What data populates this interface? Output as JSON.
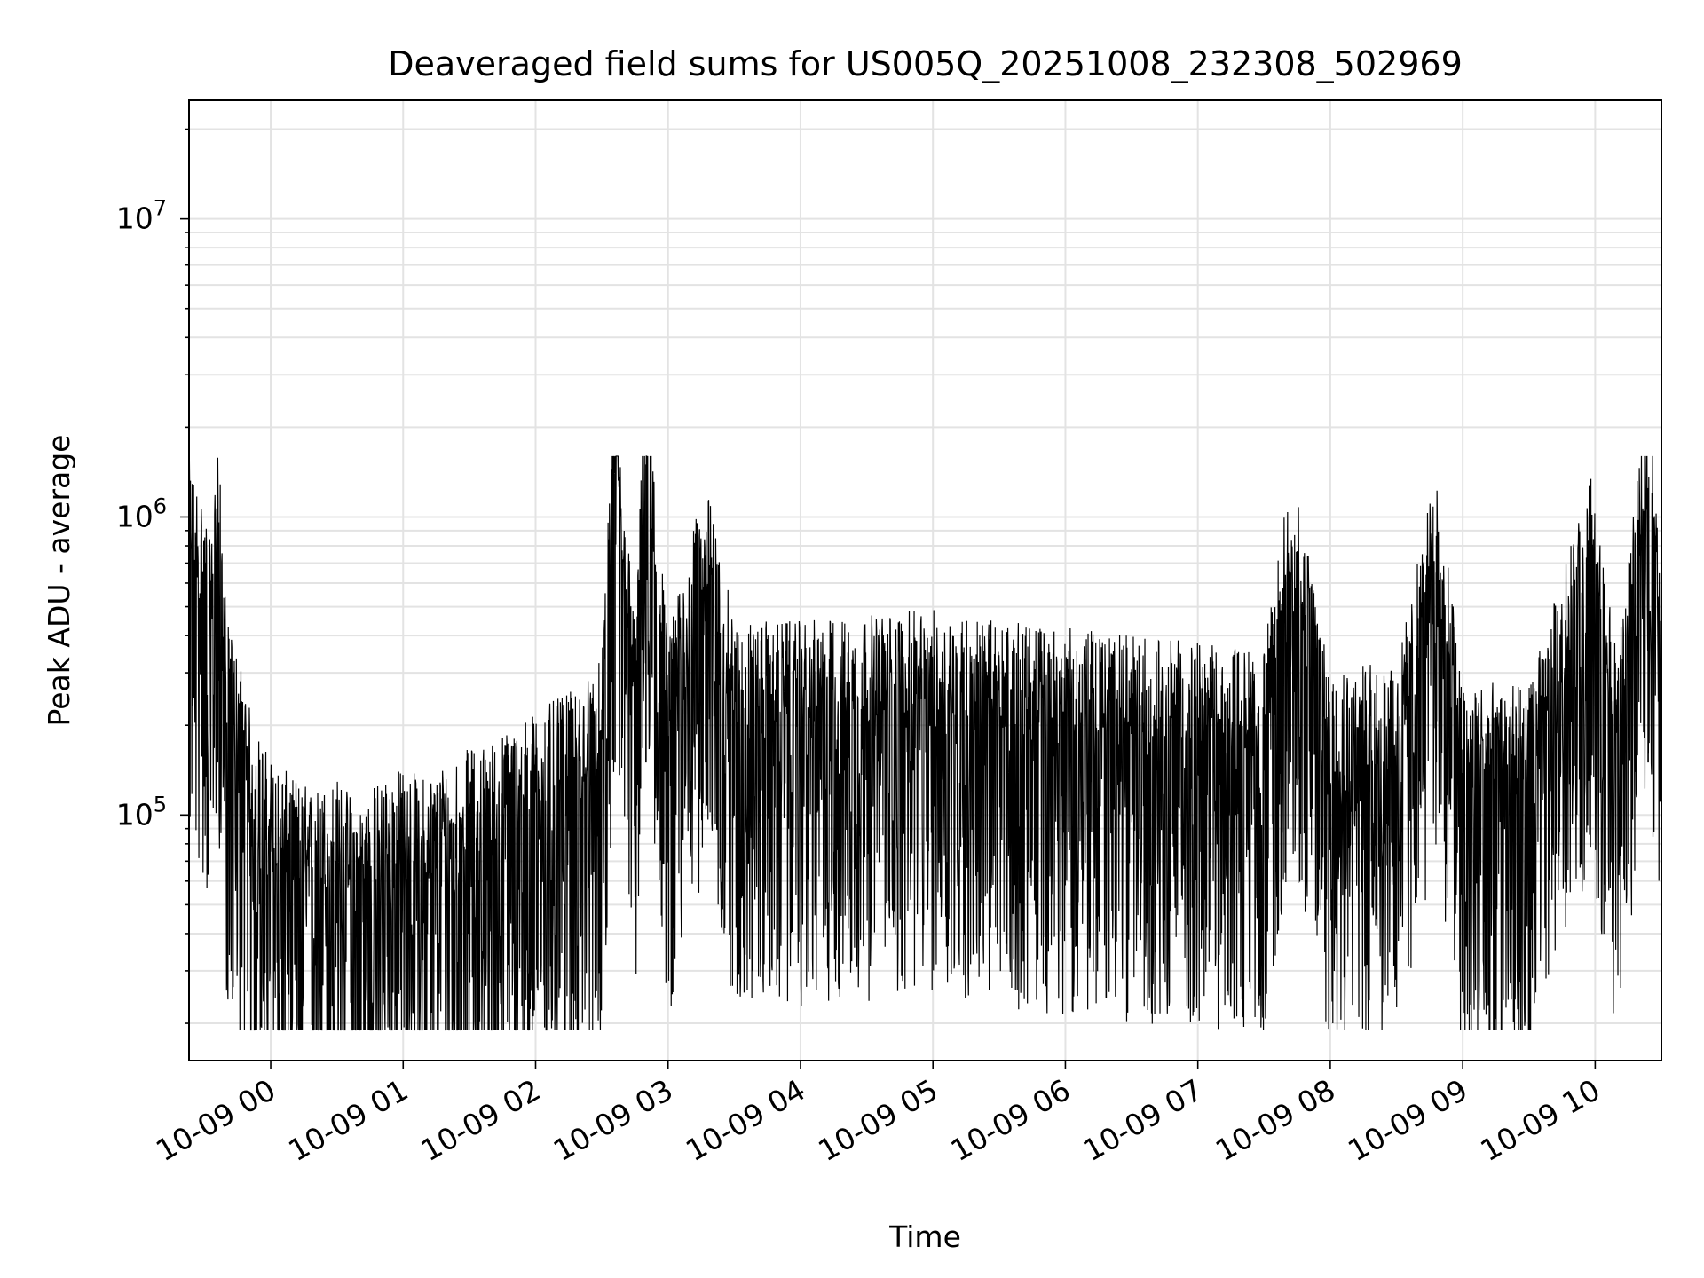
{
  "chart_data": {
    "type": "line",
    "title": "Deaveraged field sums for US005Q_20251008_232308_502969",
    "xlabel": "Time",
    "ylabel": "Peak ADU - average",
    "yscale": "log",
    "ylim": [
      15000,
      25000000
    ],
    "xlim": [
      "2025-10-08 23:23",
      "2025-10-09 10:30"
    ],
    "x_ticks": [
      {
        "t": "2025-10-09 00:00",
        "label": "10-09 00"
      },
      {
        "t": "2025-10-09 01:00",
        "label": "10-09 01"
      },
      {
        "t": "2025-10-09 02:00",
        "label": "10-09 02"
      },
      {
        "t": "2025-10-09 03:00",
        "label": "10-09 03"
      },
      {
        "t": "2025-10-09 04:00",
        "label": "10-09 04"
      },
      {
        "t": "2025-10-09 05:00",
        "label": "10-09 05"
      },
      {
        "t": "2025-10-09 06:00",
        "label": "10-09 06"
      },
      {
        "t": "2025-10-09 07:00",
        "label": "10-09 07"
      },
      {
        "t": "2025-10-09 08:00",
        "label": "10-09 08"
      },
      {
        "t": "2025-10-09 09:00",
        "label": "10-09 09"
      },
      {
        "t": "2025-10-09 10:00",
        "label": "10-09 10"
      }
    ],
    "y_ticks": [
      {
        "value": 100000,
        "base": "10",
        "exp": "5"
      },
      {
        "value": 1000000,
        "base": "10",
        "exp": "6"
      },
      {
        "value": 10000000,
        "base": "10",
        "exp": "7"
      }
    ],
    "grid": true,
    "line_color": "#000000",
    "series": [
      {
        "x": [
          "2025-10-08 23:23",
          "2025-10-08 23:30",
          "2025-10-08 23:33",
          "2025-10-08 23:36",
          "2025-10-08 23:40",
          "2025-10-08 23:46",
          "2025-10-08 23:52",
          "2025-10-09 00:00",
          "2025-10-09 00:10",
          "2025-10-09 00:20",
          "2025-10-09 00:30",
          "2025-10-09 00:40",
          "2025-10-09 00:50",
          "2025-10-09 01:00",
          "2025-10-09 01:10",
          "2025-10-09 01:20",
          "2025-10-09 01:30",
          "2025-10-09 01:40",
          "2025-10-09 01:50",
          "2025-10-09 02:00",
          "2025-10-09 02:10",
          "2025-10-09 02:20",
          "2025-10-09 02:30",
          "2025-10-09 02:36",
          "2025-10-09 02:45",
          "2025-10-09 02:50",
          "2025-10-09 03:00",
          "2025-10-09 03:17",
          "2025-10-09 03:30",
          "2025-10-09 04:00",
          "2025-10-09 04:30",
          "2025-10-09 05:00",
          "2025-10-09 05:30",
          "2025-10-09 06:00",
          "2025-10-09 06:30",
          "2025-10-09 07:00",
          "2025-10-09 07:30",
          "2025-10-09 07:42",
          "2025-10-09 08:00",
          "2025-10-09 08:30",
          "2025-10-09 08:48",
          "2025-10-09 09:00",
          "2025-10-09 09:30",
          "2025-10-09 09:58",
          "2025-10-09 10:10",
          "2025-10-09 10:24",
          "2025-10-09 10:30"
        ],
        "y": [
          700000,
          500000,
          350000,
          900000,
          200000,
          150000,
          90000,
          70000,
          60000,
          55000,
          60000,
          50000,
          60000,
          65000,
          60000,
          70000,
          75000,
          80000,
          90000,
          100000,
          110000,
          120000,
          150000,
          1400000,
          200000,
          1500000,
          180000,
          600000,
          200000,
          200000,
          210000,
          220000,
          200000,
          190000,
          180000,
          170000,
          160000,
          650000,
          150000,
          140000,
          650000,
          130000,
          120000,
          620000,
          150000,
          1250000,
          300000
        ]
      }
    ]
  }
}
